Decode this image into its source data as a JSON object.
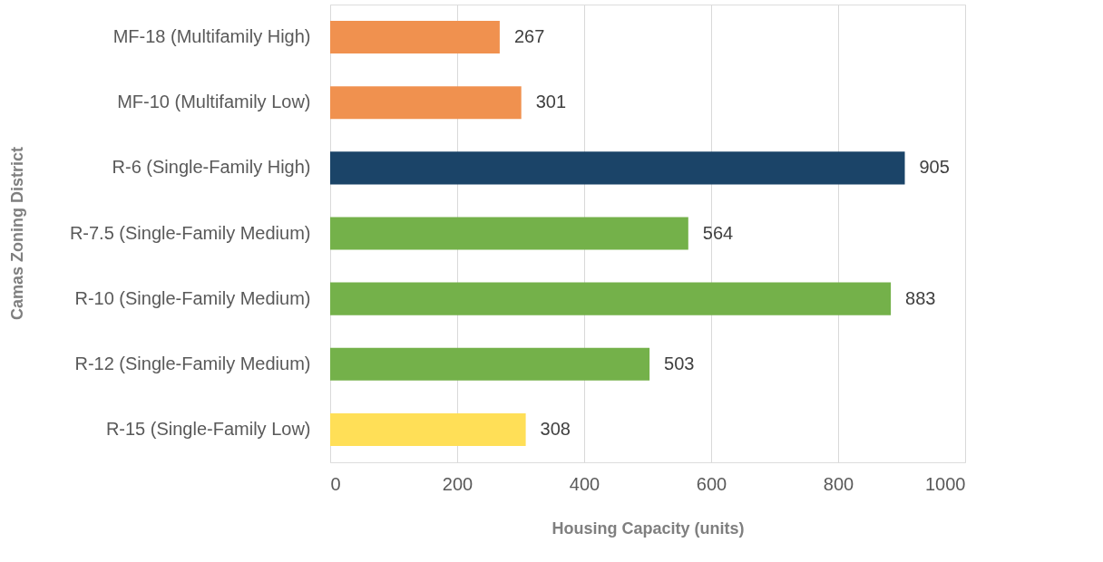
{
  "chart_data": {
    "type": "bar",
    "orientation": "horizontal",
    "xlabel": "Housing Capacity (units)",
    "ylabel": "Camas Zoning District",
    "categories": [
      "MF-18 (Multifamily High)",
      "MF-10 (Multifamily Low)",
      "R-6 (Single-Family High)",
      "R-7.5 (Single-Family Medium)",
      "R-10 (Single-Family Medium)",
      "R-12 (Single-Family Medium)",
      "R-15 (Single-Family Low)"
    ],
    "values": [
      267,
      301,
      905,
      564,
      883,
      503,
      308
    ],
    "colors": [
      "#f0914f",
      "#f0914f",
      "#1b4468",
      "#74b14a",
      "#74b14a",
      "#74b14a",
      "#ffdf57"
    ],
    "xlim": [
      0,
      1000
    ],
    "xticks": [
      0,
      200,
      400,
      600,
      800,
      1000
    ],
    "grid": "x",
    "data_labels": true
  }
}
